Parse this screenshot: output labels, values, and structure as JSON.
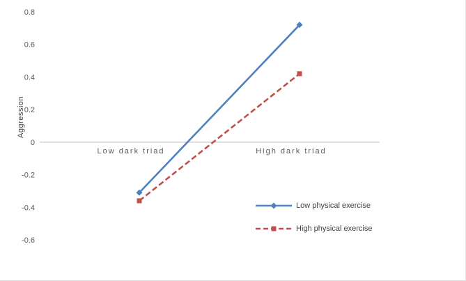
{
  "chart_data": {
    "type": "line",
    "title": "",
    "xlabel": "",
    "ylabel": "Aggression",
    "categories": [
      "Low dark triad",
      "High dark triad"
    ],
    "series": [
      {
        "name": "Low physical exercise",
        "values": [
          -0.31,
          0.72
        ],
        "color": "#4F81BD",
        "line_style": "solid",
        "marker": "diamond"
      },
      {
        "name": "High physical exercise",
        "values": [
          -0.36,
          0.42
        ],
        "color": "#C0504D",
        "line_style": "dashed",
        "marker": "square"
      }
    ],
    "ylim": [
      -0.6,
      0.8
    ],
    "yticks": [
      "0.8",
      "0.6",
      "0.4",
      "0.2",
      "0",
      "-0.2",
      "-0.4",
      "-0.6"
    ],
    "grid": false,
    "legend_position": "inside-bottom-right",
    "axis_color": "#bfbfbf",
    "text_color": "#595959"
  }
}
